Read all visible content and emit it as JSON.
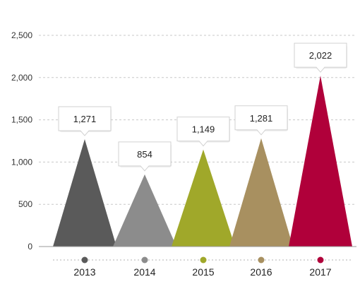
{
  "chart_data": {
    "type": "bar",
    "categories": [
      "2013",
      "2014",
      "2015",
      "2016",
      "2017"
    ],
    "values": [
      1271,
      854,
      1149,
      1281,
      2022
    ],
    "value_labels": [
      "1,271",
      "854",
      "1,149",
      "1,281",
      "2,022"
    ],
    "colors": [
      "#5a5a5a",
      "#8c8c8c",
      "#a0a82a",
      "#a89060",
      "#b0003a"
    ],
    "ylim": [
      0,
      2500
    ],
    "yticks": [
      0,
      500,
      1000,
      1500,
      2000,
      2500
    ],
    "ytick_labels": [
      "0",
      "500",
      "1,000",
      "1,500",
      "2,000",
      "2,500"
    ],
    "grid": true,
    "title": "",
    "xlabel": "",
    "ylabel": ""
  }
}
